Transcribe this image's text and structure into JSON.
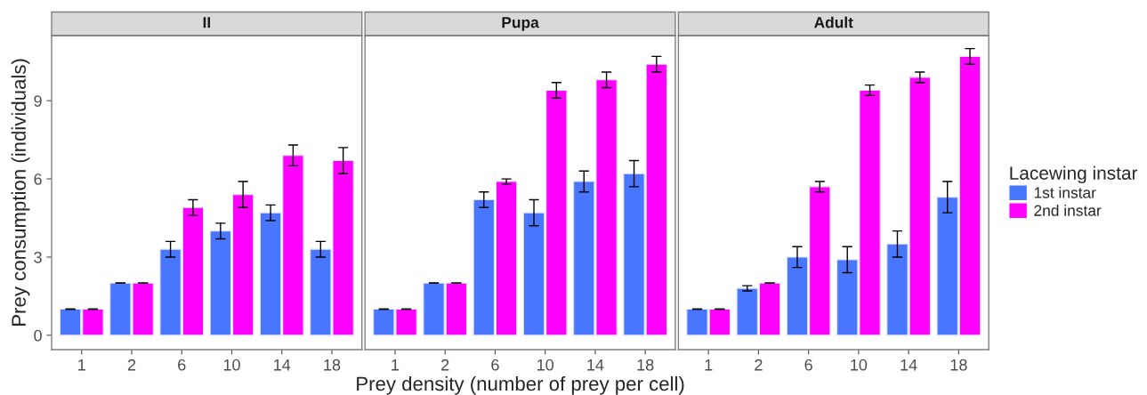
{
  "chart_data": [
    {
      "type": "bar",
      "title": "II",
      "ylabel": "Prey consumption (individuals)",
      "categories": [
        "1",
        "2",
        "6",
        "10",
        "14",
        "18"
      ],
      "ylim": [
        -0.55,
        11.5
      ],
      "yticks": [
        0,
        3,
        6,
        9
      ],
      "grid": false,
      "legend": false,
      "series": [
        {
          "color": "#4876ff",
          "values": [
            1,
            2,
            3.3,
            4.0,
            4.7,
            3.3
          ],
          "errors": [
            0,
            0,
            0.3,
            0.3,
            0.3,
            0.3
          ]
        },
        {
          "color": "#ff00ff",
          "values": [
            1,
            2,
            4.9,
            5.4,
            6.9,
            6.7
          ],
          "errors": [
            0,
            0,
            0.3,
            0.5,
            0.4,
            0.5
          ]
        }
      ]
    },
    {
      "type": "bar",
      "title": "Pupa",
      "xlabel": "Prey density (number of prey per cell)",
      "categories": [
        "1",
        "2",
        "6",
        "10",
        "14",
        "18"
      ],
      "ylim": [
        -0.55,
        11.5
      ],
      "yticks": [
        0,
        3,
        6,
        9
      ],
      "tick_labels": "x",
      "grid": false,
      "legend": false,
      "series": [
        {
          "color": "#4876ff",
          "values": [
            1,
            2,
            5.2,
            4.7,
            5.9,
            6.2
          ],
          "errors": [
            0,
            0,
            0.3,
            0.5,
            0.4,
            0.5
          ]
        },
        {
          "color": "#ff00ff",
          "values": [
            1,
            2,
            5.9,
            9.4,
            9.8,
            10.4
          ],
          "errors": [
            0,
            0,
            0.1,
            0.3,
            0.3,
            0.3
          ]
        }
      ]
    },
    {
      "type": "bar",
      "title": "Adult",
      "legend_title": "Lacewing instar",
      "categories": [
        "1",
        "2",
        "6",
        "10",
        "14",
        "18"
      ],
      "ylim": [
        -0.55,
        11.5
      ],
      "yticks": [
        0,
        3,
        6,
        9
      ],
      "tick_labels": "x",
      "grid": false,
      "legend": "right",
      "series": [
        {
          "name": "1st instar",
          "color": "#4876ff",
          "values": [
            1,
            1.8,
            3.0,
            2.9,
            3.5,
            5.3
          ],
          "errors": [
            0,
            0.1,
            0.4,
            0.5,
            0.5,
            0.6
          ]
        },
        {
          "name": "2nd instar",
          "color": "#ff00ff",
          "values": [
            1,
            2,
            5.7,
            9.4,
            9.9,
            10.7
          ],
          "errors": [
            0,
            0,
            0.2,
            0.2,
            0.2,
            0.3
          ]
        }
      ]
    }
  ]
}
